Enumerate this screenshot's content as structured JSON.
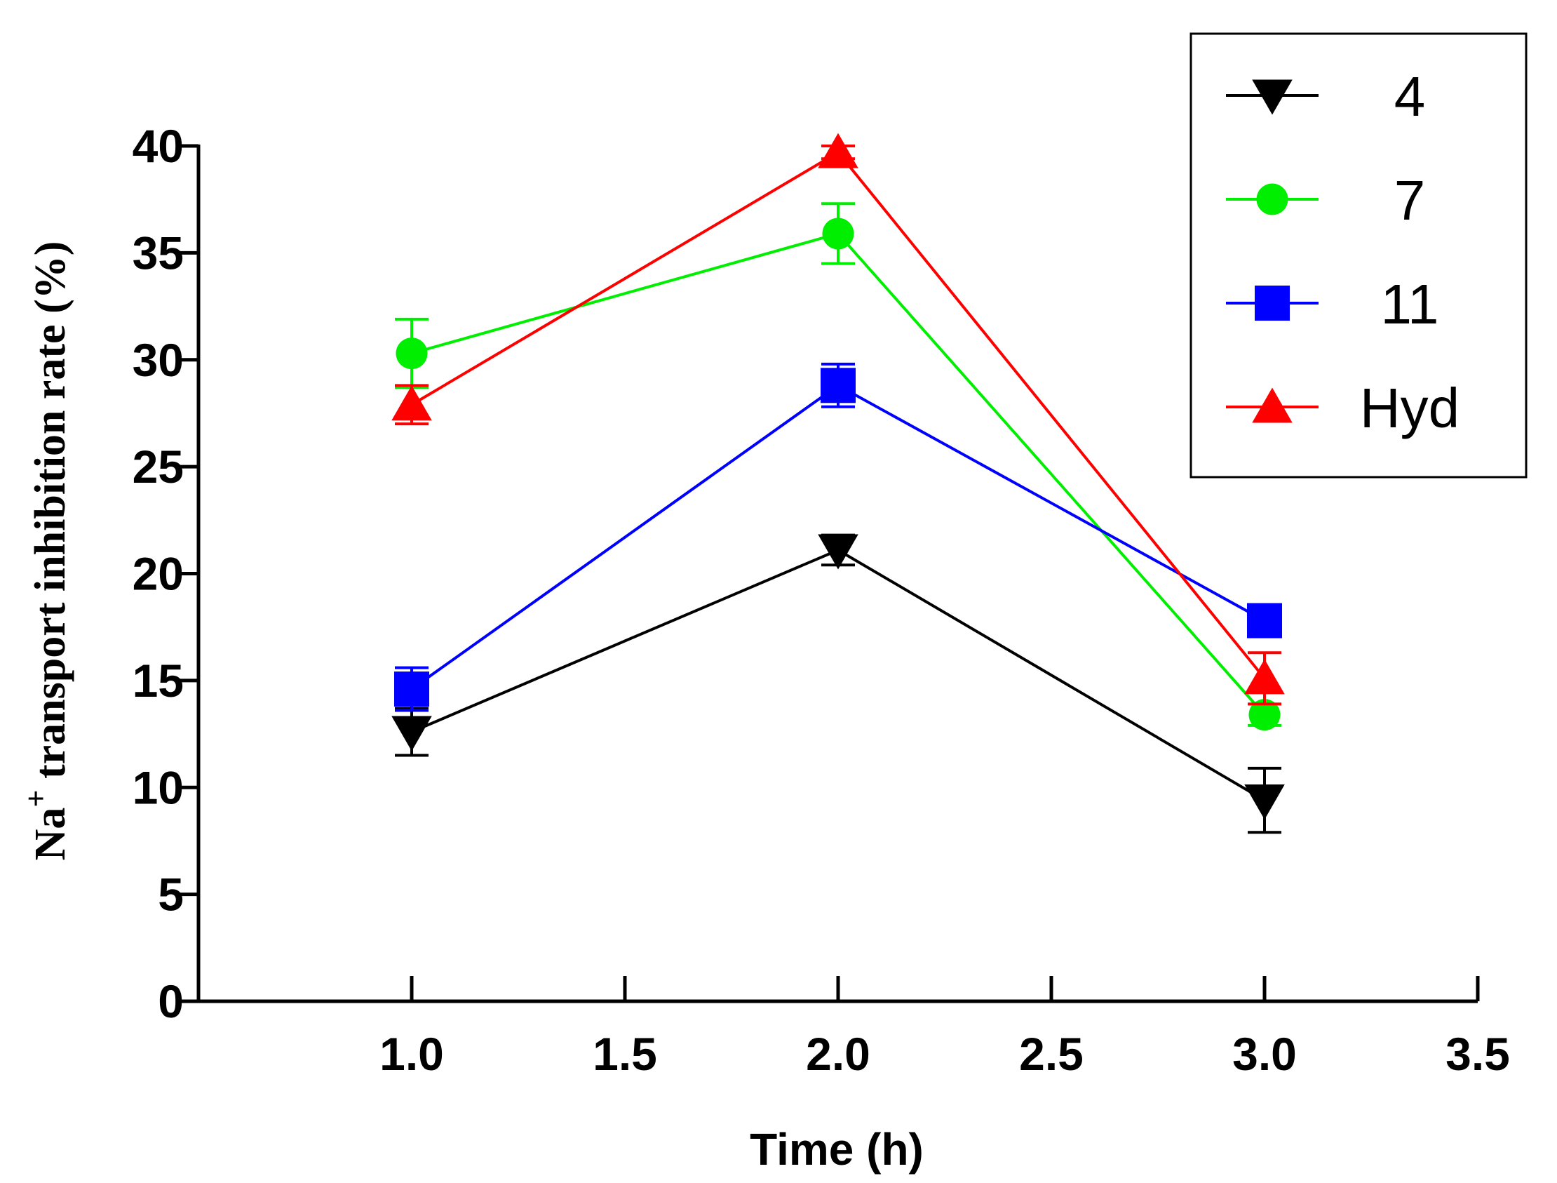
{
  "chart_data": {
    "type": "line",
    "xlabel": "Time (h)",
    "ylabel_parts": {
      "pre": "Na",
      "sup": "+",
      "post": " transport inhibition rate (%)"
    },
    "xlim": [
      0.5,
      3.5
    ],
    "ylim": [
      0,
      40
    ],
    "xticks": [
      1.0,
      1.5,
      2.0,
      2.5,
      3.0,
      3.5
    ],
    "xtick_labels": [
      "1.0",
      "1.5",
      "2.0",
      "2.5",
      "3.0",
      "3.5"
    ],
    "yticks": [
      0,
      5,
      10,
      15,
      20,
      25,
      30,
      35,
      40
    ],
    "ytick_labels": [
      "0",
      "5",
      "10",
      "15",
      "20",
      "25",
      "30",
      "35",
      "40"
    ],
    "x": [
      1.0,
      2.0,
      3.0
    ],
    "legend_position": "top-right",
    "series": [
      {
        "name": "4",
        "color": "#000000",
        "marker": "triangle-down",
        "values": [
          12.6,
          21.1,
          9.4
        ],
        "errors": [
          1.1,
          0.7,
          1.5
        ]
      },
      {
        "name": "7",
        "color": "#00ee00",
        "marker": "circle",
        "values": [
          30.3,
          35.9,
          13.4
        ],
        "errors": [
          1.6,
          1.4,
          0.5
        ]
      },
      {
        "name": "11",
        "color": "#0000ff",
        "marker": "square",
        "values": [
          14.6,
          28.8,
          17.8
        ],
        "errors": [
          1.0,
          1.0,
          0.3
        ]
      },
      {
        "name": "Hyd",
        "color": "#ff0000",
        "marker": "triangle-up",
        "values": [
          27.9,
          39.7,
          15.1
        ],
        "errors": [
          0.9,
          0.3,
          1.2
        ]
      }
    ]
  }
}
